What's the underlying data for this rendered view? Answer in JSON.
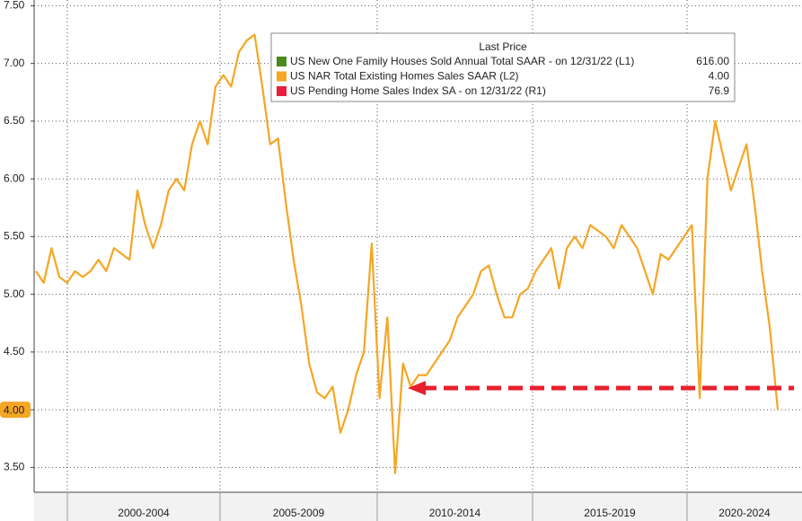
{
  "chart_data": {
    "type": "line",
    "ylim": [
      3.285,
      7.55
    ],
    "yticks": [
      {
        "value": 3.5,
        "label": "3.50"
      },
      {
        "value": 4,
        "label": "4.00"
      },
      {
        "value": 4.5,
        "label": "4.50"
      },
      {
        "value": 5,
        "label": "5.00"
      },
      {
        "value": 5.5,
        "label": "5.50"
      },
      {
        "value": 6,
        "label": "6.00"
      },
      {
        "value": 6.5,
        "label": "6.50"
      },
      {
        "value": 7,
        "label": "7.00"
      },
      {
        "value": 7.5,
        "label": "7.50"
      }
    ],
    "periods": [
      "2000-2004",
      "2005-2009",
      "2010-2014",
      "2015-2019",
      "2020-2024"
    ],
    "grid": true,
    "series": [
      {
        "name": "US NAR Total Existing Homes Sales SAAR  (L2)",
        "color": "#f5a623",
        "values": [
          5.2,
          5.1,
          5.4,
          5.15,
          5.1,
          5.2,
          5.15,
          5.2,
          5.3,
          5.2,
          5.4,
          5.35,
          5.3,
          5.9,
          5.6,
          5.4,
          5.6,
          5.9,
          6.0,
          5.9,
          6.3,
          6.5,
          6.3,
          6.8,
          6.9,
          6.8,
          7.1,
          7.2,
          7.25,
          6.8,
          6.3,
          6.35,
          5.8,
          5.3,
          4.9,
          4.4,
          4.15,
          4.1,
          4.2,
          3.8,
          4.0,
          4.3,
          4.5,
          5.44,
          4.1,
          4.8,
          3.45,
          4.4,
          4.2,
          4.3,
          4.3,
          4.4,
          4.5,
          4.6,
          4.8,
          4.9,
          5.0,
          5.2,
          5.25,
          5.0,
          4.8,
          4.8,
          5.0,
          5.05,
          5.2,
          5.3,
          5.4,
          5.05,
          5.4,
          5.5,
          5.4,
          5.6,
          5.55,
          5.5,
          5.4,
          5.6,
          5.5,
          5.4,
          5.2,
          5.0,
          5.35,
          5.3,
          5.4,
          5.5,
          5.6,
          4.1,
          6.0,
          6.5,
          6.2,
          5.9,
          6.1,
          6.3,
          5.8,
          5.2,
          4.7,
          4.0
        ]
      }
    ],
    "legend": {
      "title": "Last Price",
      "items": [
        {
          "name": "US New One Family Houses Sold Annual Total SAAR -  on 12/31/22  (L1)",
          "color": "#4a8a1c",
          "last": {
            "value": 616,
            "label": "616.00"
          }
        },
        {
          "name": "US NAR Total Existing Homes Sales SAAR  (L2)",
          "color": "#f5a623",
          "last": {
            "value": 4,
            "label": "4.00"
          }
        },
        {
          "name": "US Pending Home Sales Index SA -  on 12/31/22  (R1)",
          "color": "#e8203c",
          "last": {
            "value": 76.9,
            "label": "76.9"
          }
        }
      ]
    }
  }
}
